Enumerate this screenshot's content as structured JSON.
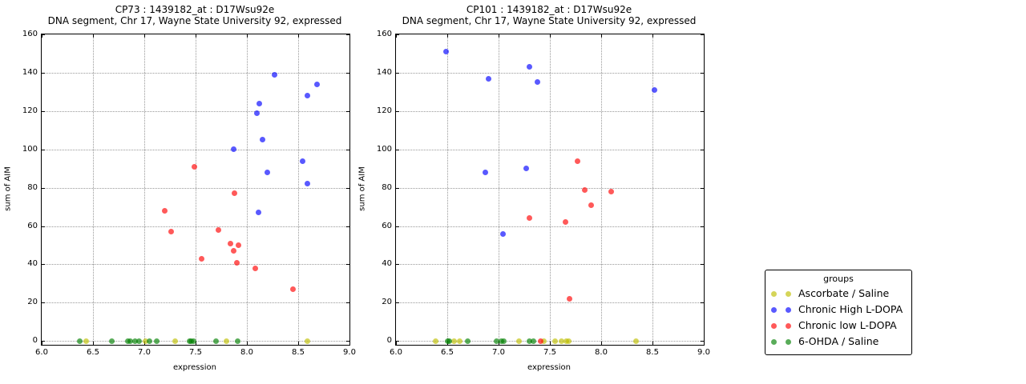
{
  "chart_data": [
    {
      "type": "scatter",
      "title": "CP73 : 1439182_at : D17Wsu92e",
      "subtitle": "DNA segment, Chr 17, Wayne State University 92, expressed",
      "xlabel": "expression",
      "ylabel": "sum of AIM",
      "xlim": [
        6.0,
        9.0
      ],
      "ylim": [
        0,
        160
      ],
      "xticks": [
        "6.0",
        "6.5",
        "7.0",
        "7.5",
        "8.0",
        "8.5",
        "9.0"
      ],
      "yticks": [
        "0",
        "20",
        "40",
        "60",
        "80",
        "100",
        "120",
        "140",
        "160"
      ],
      "grid": true,
      "legend_position": "outside-right",
      "series": [
        {
          "name": "Ascorbate / Saline",
          "color": "#bfbf00",
          "points": [
            [
              6.43,
              0
            ],
            [
              7.01,
              0
            ],
            [
              7.3,
              0
            ],
            [
              7.8,
              0
            ],
            [
              8.59,
              0
            ]
          ]
        },
        {
          "name": "Chronic High L-DOPA",
          "color": "#0000ff",
          "points": [
            [
              7.87,
              100
            ],
            [
              8.1,
              119
            ],
            [
              8.11,
              67
            ],
            [
              8.12,
              124
            ],
            [
              8.15,
              105
            ],
            [
              8.2,
              88
            ],
            [
              8.27,
              139
            ],
            [
              8.54,
              94
            ],
            [
              8.59,
              82
            ],
            [
              8.59,
              128
            ],
            [
              8.68,
              134
            ]
          ]
        },
        {
          "name": "Chronic low L-DOPA",
          "color": "#ff0000",
          "points": [
            [
              7.2,
              68
            ],
            [
              7.26,
              57
            ],
            [
              7.49,
              91
            ],
            [
              7.56,
              43
            ],
            [
              7.72,
              58
            ],
            [
              7.84,
              51
            ],
            [
              7.87,
              47
            ],
            [
              7.88,
              77
            ],
            [
              7.9,
              41
            ],
            [
              7.92,
              50
            ],
            [
              8.08,
              38
            ],
            [
              8.45,
              27
            ]
          ]
        },
        {
          "name": "6-OHDA / Saline",
          "color": "#008000",
          "points": [
            [
              6.37,
              0
            ],
            [
              6.68,
              0
            ],
            [
              6.84,
              0
            ],
            [
              6.86,
              0
            ],
            [
              6.91,
              0
            ],
            [
              6.95,
              0
            ],
            [
              7.05,
              0
            ],
            [
              7.12,
              0
            ],
            [
              7.44,
              0
            ],
            [
              7.46,
              0
            ],
            [
              7.48,
              0
            ],
            [
              7.7,
              0
            ],
            [
              7.91,
              0
            ]
          ]
        }
      ]
    },
    {
      "type": "scatter",
      "title": "CP101 : 1439182_at : D17Wsu92e",
      "subtitle": "DNA segment, Chr 17, Wayne State University 92, expressed",
      "xlabel": "expression",
      "ylabel": "sum of AIM",
      "xlim": [
        6.0,
        9.0
      ],
      "ylim": [
        0,
        160
      ],
      "xticks": [
        "6.0",
        "6.5",
        "7.0",
        "7.5",
        "8.0",
        "8.5",
        "9.0"
      ],
      "yticks": [
        "0",
        "20",
        "40",
        "60",
        "80",
        "100",
        "120",
        "140",
        "160"
      ],
      "grid": true,
      "legend_position": "outside-right",
      "series": [
        {
          "name": "Ascorbate / Saline",
          "color": "#bfbf00",
          "points": [
            [
              6.39,
              0
            ],
            [
              6.57,
              0
            ],
            [
              6.62,
              0
            ],
            [
              7.2,
              0
            ],
            [
              7.44,
              0
            ],
            [
              7.55,
              0
            ],
            [
              7.61,
              0
            ],
            [
              7.66,
              0
            ],
            [
              7.68,
              0
            ],
            [
              8.34,
              0
            ]
          ]
        },
        {
          "name": "Chronic High L-DOPA",
          "color": "#0000ff",
          "points": [
            [
              6.49,
              151
            ],
            [
              6.87,
              88
            ],
            [
              6.9,
              137
            ],
            [
              7.04,
              56
            ],
            [
              7.27,
              90
            ],
            [
              7.3,
              143
            ],
            [
              7.38,
              135
            ],
            [
              8.52,
              131
            ]
          ]
        },
        {
          "name": "Chronic low L-DOPA",
          "color": "#ff0000",
          "points": [
            [
              7.3,
              64
            ],
            [
              7.41,
              0
            ],
            [
              7.65,
              62
            ],
            [
              7.69,
              22
            ],
            [
              7.77,
              94
            ],
            [
              7.84,
              79
            ],
            [
              7.9,
              71
            ],
            [
              8.1,
              78
            ]
          ]
        },
        {
          "name": "6-OHDA / Saline",
          "color": "#008000",
          "points": [
            [
              6.5,
              0
            ],
            [
              6.52,
              0
            ],
            [
              6.7,
              0
            ],
            [
              6.98,
              0
            ],
            [
              7.03,
              0
            ],
            [
              7.05,
              0
            ],
            [
              7.3,
              0
            ],
            [
              7.34,
              0
            ]
          ]
        }
      ]
    }
  ],
  "legend": {
    "title": "groups",
    "marker_alpha": 0.65,
    "entries": [
      {
        "label": "Ascorbate / Saline",
        "color": "#bfbf00"
      },
      {
        "label": "Chronic High L-DOPA",
        "color": "#0000ff"
      },
      {
        "label": "Chronic low L-DOPA",
        "color": "#ff0000"
      },
      {
        "label": "6-OHDA / Saline",
        "color": "#008000"
      }
    ]
  }
}
